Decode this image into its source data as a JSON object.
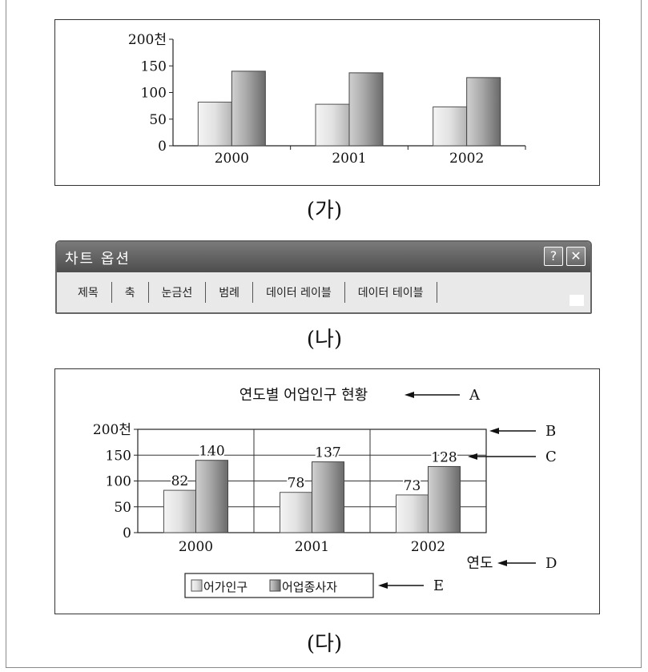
{
  "captions": {
    "ga": "(가)",
    "na": "(나)",
    "da": "(다)"
  },
  "dialog": {
    "title": "차트 옵션",
    "help_label": "?",
    "close_label": "✕",
    "tabs": [
      "제목",
      "축",
      "눈금선",
      "범례",
      "데이터 레이블",
      "데이터 테이블"
    ]
  },
  "chart_data": [
    {
      "type": "bar",
      "categories": [
        "2000",
        "2001",
        "2002"
      ],
      "series": [
        {
          "values": [
            82,
            78,
            73
          ]
        },
        {
          "values": [
            140,
            137,
            128
          ]
        }
      ],
      "y_ticks": [
        "0",
        "50",
        "100",
        "150",
        "200천"
      ],
      "ylim": [
        0,
        200
      ],
      "grid": false,
      "legend": "none",
      "data_labels": false
    },
    {
      "type": "bar",
      "title": "연도별 어업인구 현황",
      "xlabel": "연도",
      "categories": [
        "2000",
        "2001",
        "2002"
      ],
      "series": [
        {
          "name": "어가인구",
          "values": [
            82,
            78,
            73
          ]
        },
        {
          "name": "어업종사자",
          "values": [
            140,
            137,
            128
          ]
        }
      ],
      "y_ticks": [
        "0",
        "50",
        "100",
        "150",
        "200천"
      ],
      "ylim": [
        0,
        200
      ],
      "grid": true,
      "legend": "bottom",
      "data_labels": true,
      "annotations": [
        "A",
        "B",
        "C",
        "D",
        "E"
      ]
    }
  ]
}
